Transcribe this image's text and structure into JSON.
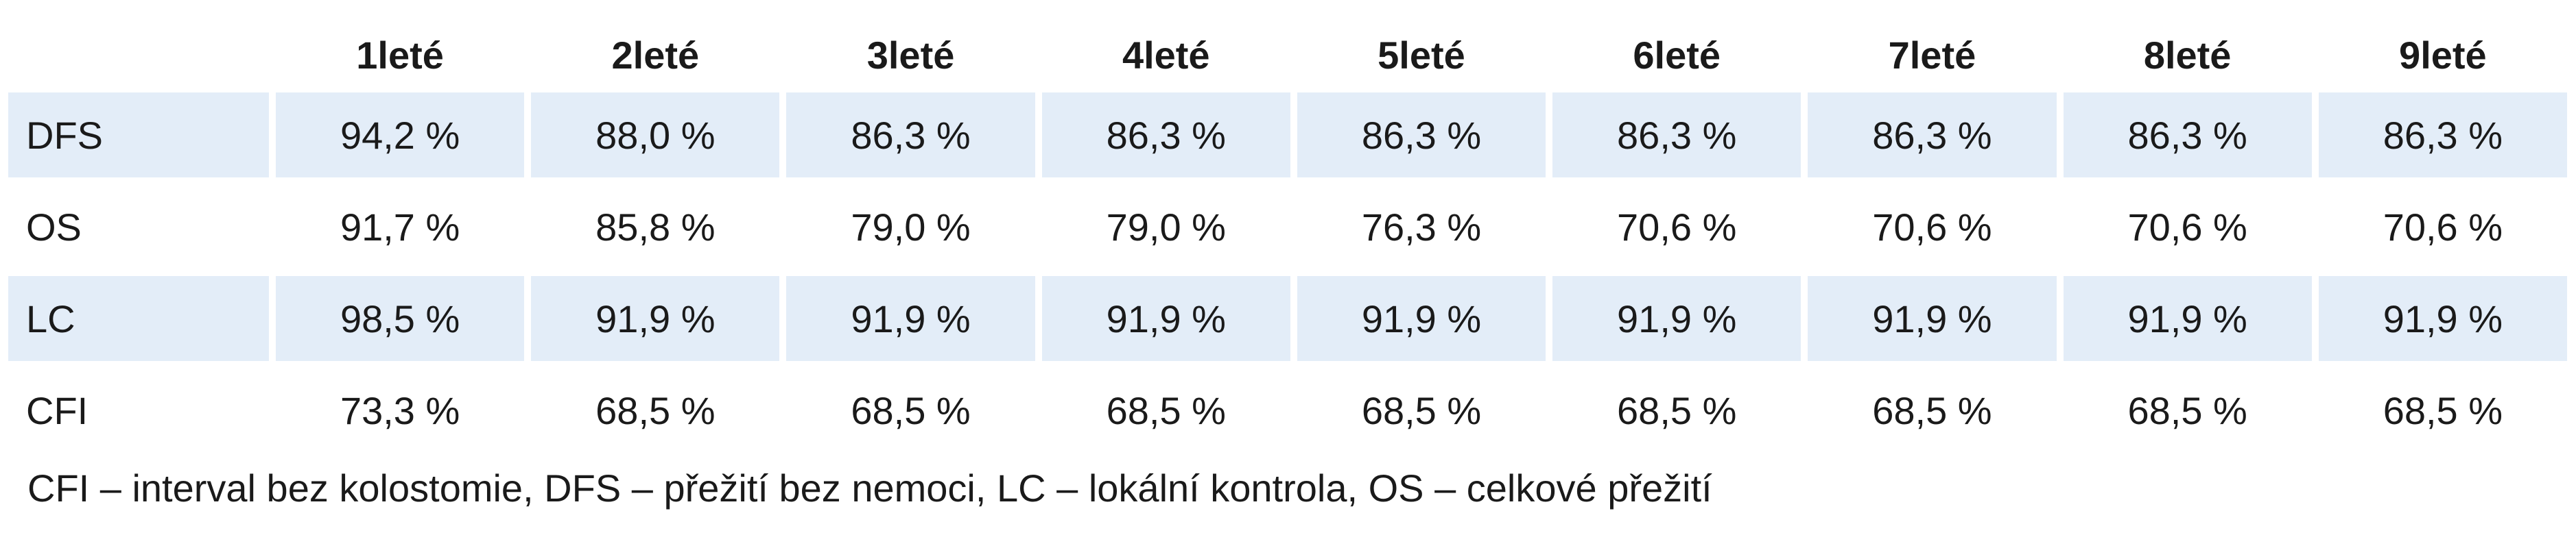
{
  "table": {
    "headers": [
      "",
      "1leté",
      "2leté",
      "3leté",
      "4leté",
      "5leté",
      "6leté",
      "7leté",
      "8leté",
      "9leté"
    ],
    "rows": [
      {
        "label": "DFS",
        "shaded": true,
        "values": [
          "94,2 %",
          "88,0 %",
          "86,3 %",
          "86,3 %",
          "86,3 %",
          "86,3 %",
          "86,3 %",
          "86,3 %",
          "86,3 %"
        ]
      },
      {
        "label": "OS",
        "shaded": false,
        "values": [
          "91,7 %",
          "85,8 %",
          "79,0 %",
          "79,0 %",
          "76,3 %",
          "70,6 %",
          "70,6 %",
          "70,6 %",
          "70,6 %"
        ]
      },
      {
        "label": "LC",
        "shaded": true,
        "values": [
          "98,5 %",
          "91,9 %",
          "91,9 %",
          "91,9 %",
          "91,9 %",
          "91,9 %",
          "91,9 %",
          "91,9 %",
          "91,9 %"
        ]
      },
      {
        "label": "CFI",
        "shaded": false,
        "values": [
          "73,3 %",
          "68,5 %",
          "68,5 %",
          "68,5 %",
          "68,5 %",
          "68,5 %",
          "68,5 %",
          "68,5 %",
          "68,5 %"
        ]
      }
    ]
  },
  "footnote": "CFI – interval bez kolostomie, DFS – přežití bez nemoci, LC – lokální kontrola, OS – celkové přežití",
  "colors": {
    "row_shade": "#e3edf8",
    "text": "#1a1a1a"
  }
}
